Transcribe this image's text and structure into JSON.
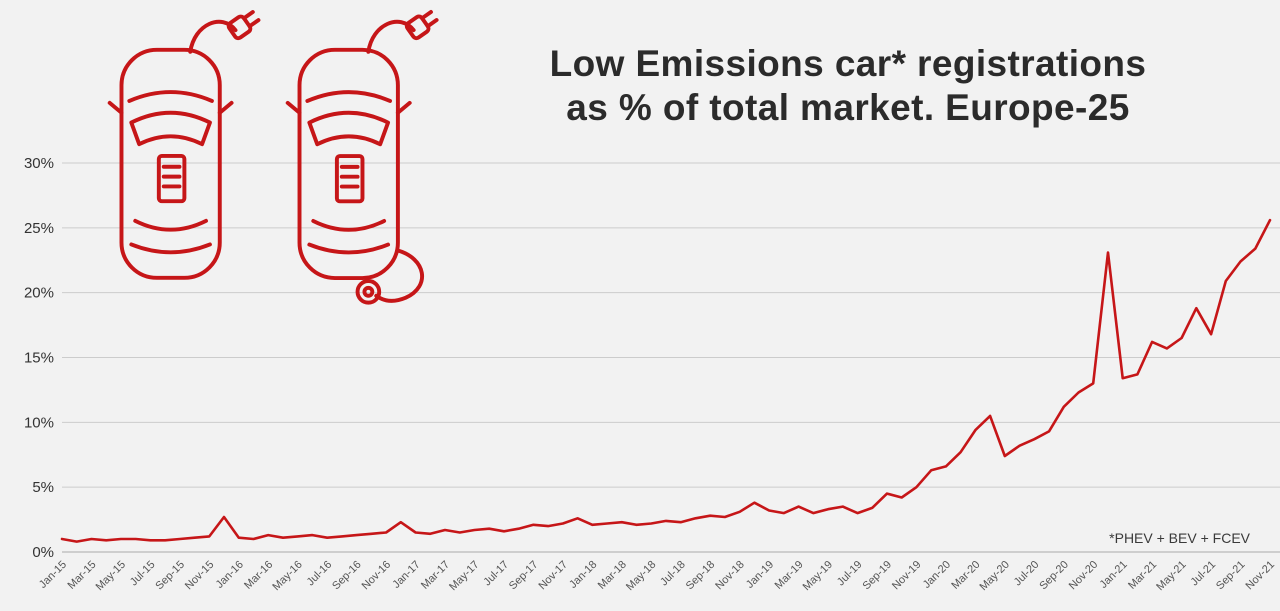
{
  "title": {
    "line1": "Low Emissions car* registrations",
    "line2": "as % of total market. Europe-25"
  },
  "footnote": "*PHEV + BEV + FCEV",
  "colors": {
    "background": "#f2f2f2",
    "line": "#c61618",
    "car_art": "#c61618",
    "grid": "#cccccc",
    "axis_line": "#ababab",
    "axis_text": "#333333",
    "tick_text": "#555555",
    "title_text": "#2b2b2b"
  },
  "chart_data": {
    "type": "line",
    "title": "Low Emissions car* registrations as % of total market. Europe-25",
    "annotation": "*PHEV + BEV + FCEV",
    "xlabel": "",
    "ylabel": "",
    "ylim": [
      0,
      30
    ],
    "yticks": [
      0,
      5,
      10,
      15,
      20,
      25,
      30
    ],
    "ytick_labels": [
      "0%",
      "5%",
      "10%",
      "15%",
      "20%",
      "25%",
      "30%"
    ],
    "xtick_every": 2,
    "grid": true,
    "legend": "none",
    "x": [
      "Jan-15",
      "Feb-15",
      "Mar-15",
      "Apr-15",
      "May-15",
      "Jun-15",
      "Jul-15",
      "Aug-15",
      "Sep-15",
      "Oct-15",
      "Nov-15",
      "Dec-15",
      "Jan-16",
      "Feb-16",
      "Mar-16",
      "Apr-16",
      "May-16",
      "Jun-16",
      "Jul-16",
      "Aug-16",
      "Sep-16",
      "Oct-16",
      "Nov-16",
      "Dec-16",
      "Jan-17",
      "Feb-17",
      "Mar-17",
      "Apr-17",
      "May-17",
      "Jun-17",
      "Jul-17",
      "Aug-17",
      "Sep-17",
      "Oct-17",
      "Nov-17",
      "Dec-17",
      "Jan-18",
      "Feb-18",
      "Mar-18",
      "Apr-18",
      "May-18",
      "Jun-18",
      "Jul-18",
      "Aug-18",
      "Sep-18",
      "Oct-18",
      "Nov-18",
      "Dec-18",
      "Jan-19",
      "Feb-19",
      "Mar-19",
      "Apr-19",
      "May-19",
      "Jun-19",
      "Jul-19",
      "Aug-19",
      "Sep-19",
      "Oct-19",
      "Nov-19",
      "Dec-19",
      "Jan-20",
      "Feb-20",
      "Mar-20",
      "Apr-20",
      "May-20",
      "Jun-20",
      "Jul-20",
      "Aug-20",
      "Sep-20",
      "Oct-20",
      "Nov-20",
      "Dec-20",
      "Jan-21",
      "Feb-21",
      "Mar-21",
      "Apr-21",
      "May-21",
      "Jun-21",
      "Jul-21",
      "Aug-21",
      "Sep-21",
      "Oct-21",
      "Nov-21"
    ],
    "values": [
      1.0,
      0.8,
      1.0,
      0.9,
      1.0,
      1.0,
      0.9,
      0.9,
      1.0,
      1.1,
      1.2,
      2.7,
      1.1,
      1.0,
      1.3,
      1.1,
      1.2,
      1.3,
      1.1,
      1.2,
      1.3,
      1.4,
      1.5,
      2.3,
      1.5,
      1.4,
      1.7,
      1.5,
      1.7,
      1.8,
      1.6,
      1.8,
      2.1,
      2.0,
      2.2,
      2.6,
      2.1,
      2.2,
      2.3,
      2.1,
      2.2,
      2.4,
      2.3,
      2.6,
      2.8,
      2.7,
      3.1,
      3.8,
      3.2,
      3.0,
      3.5,
      3.0,
      3.3,
      3.5,
      3.0,
      3.4,
      4.5,
      4.2,
      5.0,
      6.3,
      6.6,
      7.7,
      9.4,
      10.5,
      7.4,
      8.2,
      8.7,
      9.3,
      11.2,
      12.3,
      13.0,
      23.1,
      13.4,
      13.7,
      16.2,
      15.7,
      16.5,
      18.8,
      16.8,
      20.9,
      22.4,
      23.4,
      25.6
    ]
  }
}
